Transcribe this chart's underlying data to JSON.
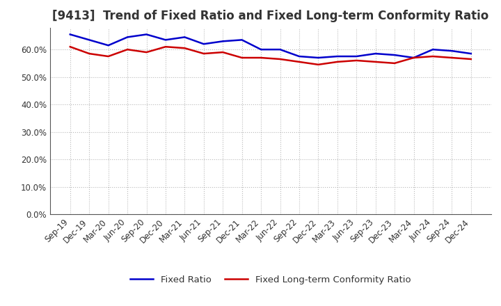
{
  "title": "[9413]  Trend of Fixed Ratio and Fixed Long-term Conformity Ratio",
  "x_labels": [
    "Sep-19",
    "Dec-19",
    "Mar-20",
    "Jun-20",
    "Sep-20",
    "Dec-20",
    "Mar-21",
    "Jun-21",
    "Sep-21",
    "Dec-21",
    "Mar-22",
    "Jun-22",
    "Sep-22",
    "Dec-22",
    "Mar-23",
    "Jun-23",
    "Sep-23",
    "Dec-23",
    "Mar-24",
    "Jun-24",
    "Sep-24",
    "Dec-24"
  ],
  "fixed_ratio": [
    65.5,
    63.5,
    61.5,
    64.5,
    65.5,
    63.5,
    64.5,
    62.0,
    63.0,
    63.5,
    60.0,
    60.0,
    57.5,
    57.0,
    57.5,
    57.5,
    58.5,
    58.0,
    57.0,
    60.0,
    59.5,
    58.5
  ],
  "fixed_lt_ratio": [
    61.0,
    58.5,
    57.5,
    60.0,
    59.0,
    61.0,
    60.5,
    58.5,
    59.0,
    57.0,
    57.0,
    56.5,
    55.5,
    54.5,
    55.5,
    56.0,
    55.5,
    55.0,
    57.0,
    57.5,
    57.0,
    56.5
  ],
  "ylim": [
    0,
    68
  ],
  "yticks": [
    0,
    10,
    20,
    30,
    40,
    50,
    60
  ],
  "ytick_labels": [
    "0.0%",
    "10.0%",
    "20.0%",
    "30.0%",
    "40.0%",
    "50.0%",
    "60.0%"
  ],
  "line_color_fixed": "#0000cc",
  "line_color_lt": "#cc0000",
  "legend_fixed": "Fixed Ratio",
  "legend_lt": "Fixed Long-term Conformity Ratio",
  "background_color": "#ffffff",
  "grid_color": "#999999",
  "title_fontsize": 12,
  "axis_fontsize": 8.5,
  "legend_fontsize": 9.5,
  "title_color": "#333333"
}
